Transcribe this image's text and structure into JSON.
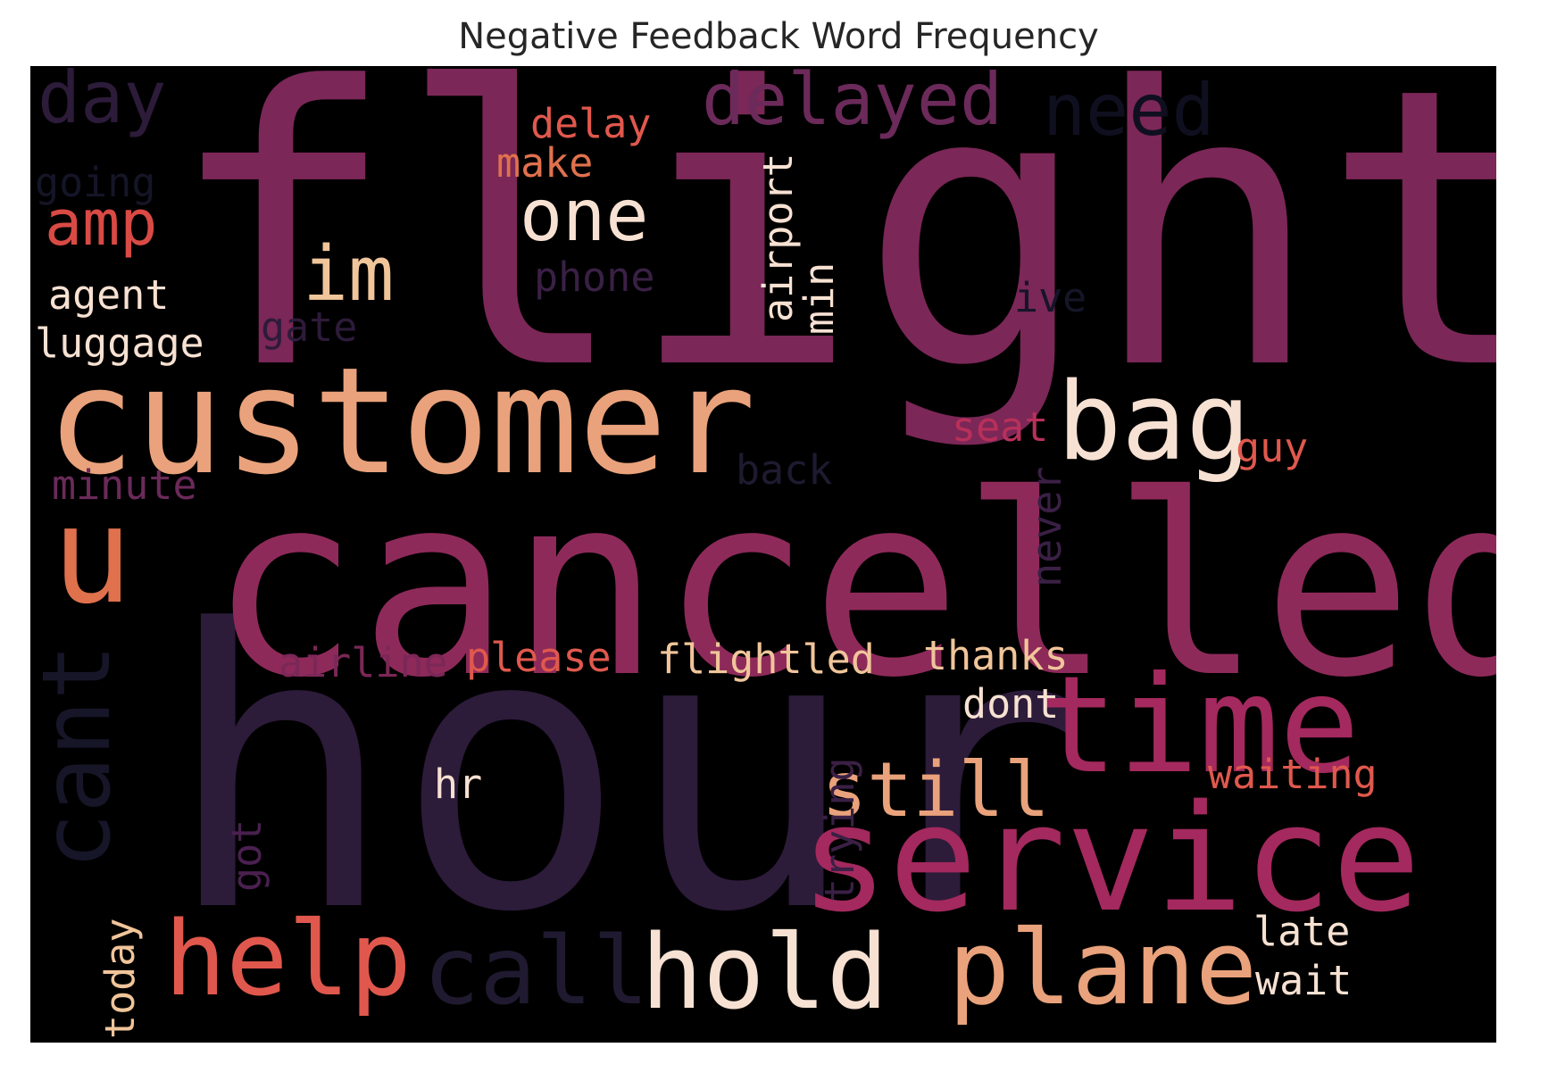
{
  "title": "Negative Feedback Word Frequency",
  "background_color": "#000000",
  "words": [
    {
      "text": "flight",
      "color": "#7b2757",
      "rotated": false
    },
    {
      "text": "hour",
      "color": "#2d1b3a",
      "rotated": false
    },
    {
      "text": "cancelled",
      "color": "#8e2a5a",
      "rotated": false
    },
    {
      "text": "customer",
      "color": "#e9a27b",
      "rotated": false
    },
    {
      "text": "service",
      "color": "#a3295e",
      "rotated": false
    },
    {
      "text": "time",
      "color": "#a3295e",
      "rotated": false
    },
    {
      "text": "bag",
      "color": "#f7e1d2",
      "rotated": false
    },
    {
      "text": "plane",
      "color": "#e9a27b",
      "rotated": false
    },
    {
      "text": "hold",
      "color": "#f7e1d2",
      "rotated": false
    },
    {
      "text": "help",
      "color": "#e0584d",
      "rotated": false
    },
    {
      "text": "call",
      "color": "#1f1a30",
      "rotated": false
    },
    {
      "text": "u",
      "color": "#e0714d",
      "rotated": false
    },
    {
      "text": "cant",
      "color": "#171528",
      "rotated": true
    },
    {
      "text": "delayed",
      "color": "#6b2a5a",
      "rotated": false
    },
    {
      "text": "need",
      "color": "#0f0f20",
      "rotated": false
    },
    {
      "text": "day",
      "color": "#2d1b3a",
      "rotated": false
    },
    {
      "text": "still",
      "color": "#e9a27b",
      "rotated": false
    },
    {
      "text": "one",
      "color": "#f7e1d2",
      "rotated": false
    },
    {
      "text": "im",
      "color": "#f0c59a",
      "rotated": false
    },
    {
      "text": "amp",
      "color": "#d94a45",
      "rotated": false
    },
    {
      "text": "delay",
      "color": "#e0584d",
      "rotated": false
    },
    {
      "text": "make",
      "color": "#e0714d",
      "rotated": false
    },
    {
      "text": "going",
      "color": "#151528",
      "rotated": false
    },
    {
      "text": "agent",
      "color": "#f7e1d2",
      "rotated": false
    },
    {
      "text": "luggage",
      "color": "#f7e1d2",
      "rotated": false
    },
    {
      "text": "gate",
      "color": "#2d1b3a",
      "rotated": false
    },
    {
      "text": "phone",
      "color": "#3a2045",
      "rotated": false
    },
    {
      "text": "airport",
      "color": "#f7e1d2",
      "rotated": true
    },
    {
      "text": "min",
      "color": "#f7e1d2",
      "rotated": true
    },
    {
      "text": "ive",
      "color": "#151528",
      "rotated": false
    },
    {
      "text": "seat",
      "color": "#b8305a",
      "rotated": false
    },
    {
      "text": "guy",
      "color": "#e0584d",
      "rotated": false
    },
    {
      "text": "back",
      "color": "#1f1a30",
      "rotated": false
    },
    {
      "text": "minute",
      "color": "#6b2a5a",
      "rotated": false
    },
    {
      "text": "never",
      "color": "#3a2045",
      "rotated": true
    },
    {
      "text": "airline",
      "color": "#7b2757",
      "rotated": false
    },
    {
      "text": "please",
      "color": "#e0584d",
      "rotated": false
    },
    {
      "text": "flightled",
      "color": "#f0c59a",
      "rotated": false
    },
    {
      "text": "thanks",
      "color": "#f0c59a",
      "rotated": false
    },
    {
      "text": "dont",
      "color": "#f7e1d2",
      "rotated": false
    },
    {
      "text": "trying",
      "color": "#3a2045",
      "rotated": true
    },
    {
      "text": "waiting",
      "color": "#e0584d",
      "rotated": false
    },
    {
      "text": "hr",
      "color": "#f7e1d2",
      "rotated": false
    },
    {
      "text": "got",
      "color": "#4a2050",
      "rotated": true
    },
    {
      "text": "today",
      "color": "#f0c59a",
      "rotated": true
    },
    {
      "text": "late",
      "color": "#f7e1d2",
      "rotated": false
    },
    {
      "text": "wait",
      "color": "#f7e1d2",
      "rotated": false
    }
  ]
}
